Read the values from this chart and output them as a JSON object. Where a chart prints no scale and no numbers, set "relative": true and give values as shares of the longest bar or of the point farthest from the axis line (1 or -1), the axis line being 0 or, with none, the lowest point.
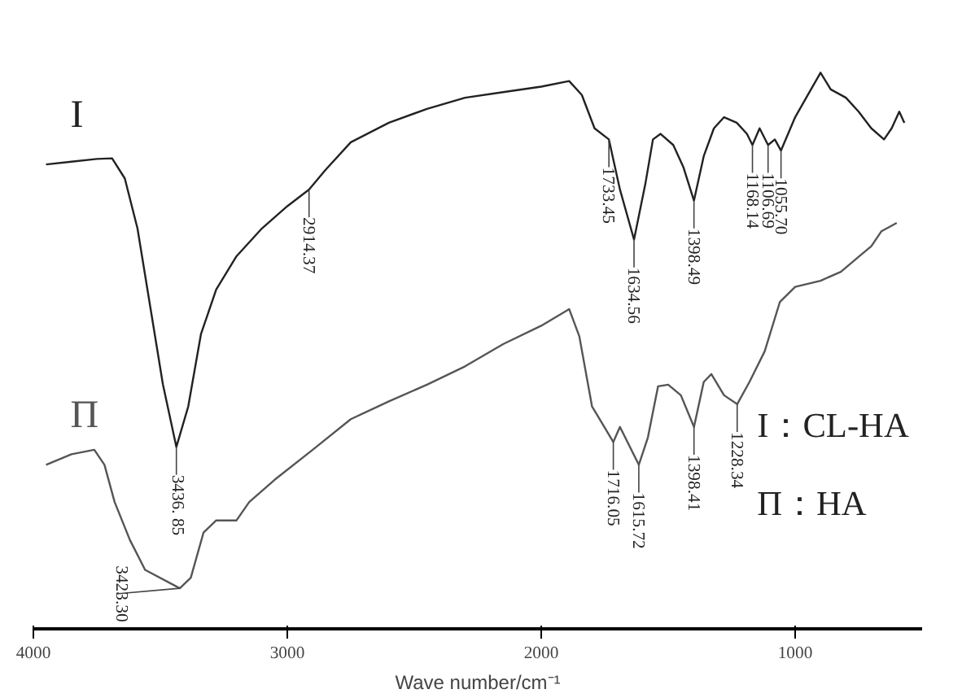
{
  "chart_data": {
    "type": "line",
    "relative": true,
    "xlabel": "Wave number/cm⁻¹",
    "xlim": [
      4000,
      500
    ],
    "xticks": [
      4000,
      3000,
      2000,
      1000
    ],
    "grid": false,
    "tick_labels": "x",
    "series": [
      {
        "name": "I",
        "color": "#222222",
        "x": [
          3950,
          3850,
          3750,
          3690,
          3640,
          3590,
          3540,
          3490,
          3436.85,
          3390,
          3340,
          3280,
          3200,
          3100,
          3000,
          2914.37,
          2850,
          2750,
          2600,
          2450,
          2300,
          2150,
          2000,
          1890,
          1840,
          1790,
          1733.45,
          1690,
          1634.56,
          1590,
          1560,
          1530,
          1480,
          1440,
          1398.49,
          1360,
          1320,
          1280,
          1230,
          1190,
          1168.14,
          1140,
          1106.69,
          1080,
          1055.7,
          1000,
          950,
          900,
          860,
          800,
          750,
          700,
          650,
          620,
          590,
          570
        ],
        "values": [
          0.835,
          0.84,
          0.845,
          0.846,
          0.81,
          0.72,
          0.58,
          0.44,
          0.327,
          0.4,
          0.53,
          0.61,
          0.67,
          0.72,
          0.76,
          0.79,
          0.825,
          0.875,
          0.91,
          0.935,
          0.955,
          0.965,
          0.975,
          0.985,
          0.96,
          0.9,
          0.88,
          0.79,
          0.7,
          0.8,
          0.88,
          0.89,
          0.87,
          0.83,
          0.77,
          0.85,
          0.9,
          0.92,
          0.91,
          0.89,
          0.87,
          0.9,
          0.87,
          0.88,
          0.86,
          0.92,
          0.96,
          1.0,
          0.97,
          0.955,
          0.93,
          0.9,
          0.88,
          0.9,
          0.93,
          0.91
        ]
      },
      {
        "name": "Π",
        "color": "#555555",
        "x": [
          3950,
          3850,
          3760,
          3720,
          3680,
          3620,
          3560,
          3423.3,
          3380,
          3330,
          3280,
          3200,
          3150,
          3050,
          2900,
          2750,
          2600,
          2450,
          2300,
          2150,
          2000,
          1890,
          1850,
          1800,
          1716.05,
          1690,
          1615.72,
          1580,
          1540,
          1500,
          1450,
          1398.41,
          1360,
          1330,
          1280,
          1228.34,
          1180,
          1120,
          1060,
          1000,
          900,
          820,
          750,
          700,
          660,
          600
        ],
        "values": [
          0.295,
          0.314,
          0.322,
          0.295,
          0.228,
          0.16,
          0.106,
          0.073,
          0.092,
          0.173,
          0.195,
          0.195,
          0.228,
          0.268,
          0.322,
          0.377,
          0.409,
          0.439,
          0.472,
          0.512,
          0.545,
          0.575,
          0.526,
          0.4,
          0.336,
          0.363,
          0.295,
          0.344,
          0.436,
          0.439,
          0.42,
          0.363,
          0.444,
          0.458,
          0.42,
          0.404,
          0.444,
          0.499,
          0.588,
          0.615,
          0.626,
          0.642,
          0.669,
          0.688,
          0.715,
          0.73
        ]
      }
    ],
    "annotations": [
      {
        "text": "3436. 85",
        "x": 3436.85,
        "y": 0.327
      },
      {
        "text": "2914.37",
        "x": 2914.37,
        "y": 0.79
      },
      {
        "text": "1733.45",
        "x": 1733.45,
        "y": 0.88
      },
      {
        "text": "1634.56",
        "x": 1634.56,
        "y": 0.7
      },
      {
        "text": "1398.49",
        "x": 1398.49,
        "y": 0.77
      },
      {
        "text": "1168.14",
        "x": 1168.14,
        "y": 0.87
      },
      {
        "text": "1106.69",
        "x": 1106.69,
        "y": 0.87
      },
      {
        "text": "1055.70",
        "x": 1055.7,
        "y": 0.86
      },
      {
        "text": "3423.30",
        "x": 3423.3,
        "y": 0.073
      },
      {
        "text": "1716.05",
        "x": 1716.05,
        "y": 0.336
      },
      {
        "text": "1615.72",
        "x": 1615.72,
        "y": 0.295
      },
      {
        "text": "1398.41",
        "x": 1398.41,
        "y": 0.363
      },
      {
        "text": "1228.34",
        "x": 1228.34,
        "y": 0.404
      },
      "I：CL-HA",
      "Π：HA"
    ]
  }
}
